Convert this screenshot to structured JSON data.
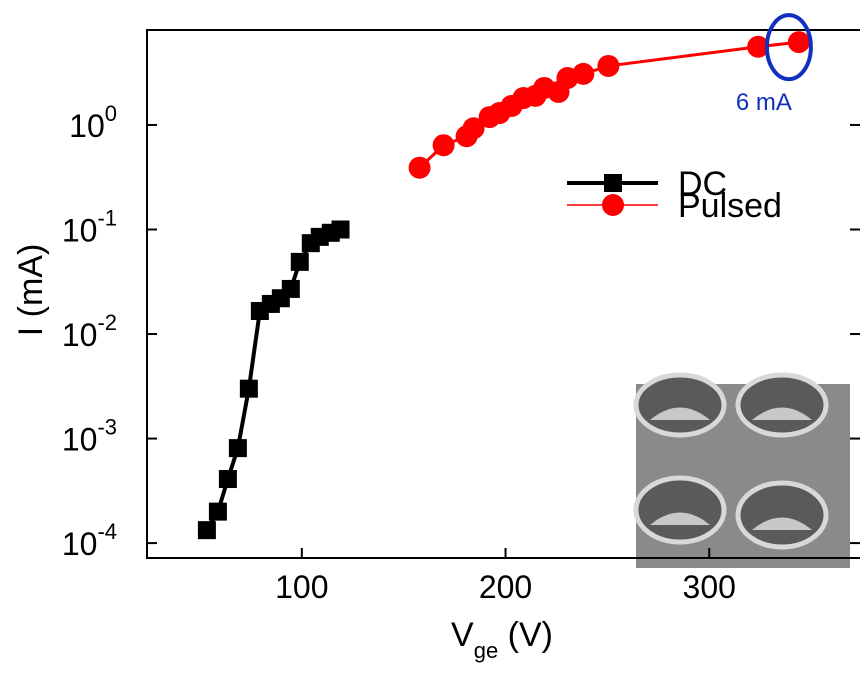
{
  "chart_data": {
    "type": "line",
    "log_y": true,
    "xlabel": {
      "main": "V",
      "sub": "ge",
      "rest": " (V)"
    },
    "ylabel": "I (mA)",
    "xlim": [
      24,
      374
    ],
    "xticks": [
      100,
      200,
      300
    ],
    "ylim": [
      7.2e-05,
      8.1
    ],
    "yticks": [
      {
        "value": 0.0001,
        "label": "10",
        "exp": "-4"
      },
      {
        "value": 0.001,
        "label": "10",
        "exp": "-3"
      },
      {
        "value": 0.01,
        "label": "10",
        "exp": "-2"
      },
      {
        "value": 0.1,
        "label": "10",
        "exp": "-1"
      },
      {
        "value": 1,
        "label": "10",
        "exp": "0"
      }
    ],
    "legend": "upper-right",
    "series": [
      {
        "name": "DC",
        "color": "#000000",
        "marker": "square",
        "x": [
          53.4,
          58.8,
          63.7,
          68.6,
          74,
          79.4,
          84.8,
          89.7,
          94.6,
          99,
          104.4,
          108.8,
          114.2,
          119
        ],
        "values": [
          0.000133,
          0.0002,
          0.00041,
          0.00081,
          0.003,
          0.0166,
          0.0194,
          0.022,
          0.027,
          0.049,
          0.074,
          0.085,
          0.093,
          0.1
        ]
      },
      {
        "name": "Pulsed",
        "color": "#ff0000",
        "marker": "circle",
        "x": [
          157.8,
          169.6,
          180.9,
          184.3,
          192.2,
          197,
          203,
          208.8,
          214.7,
          219,
          226,
          230.4,
          238.2,
          250.5,
          324,
          344
        ],
        "values": [
          0.39,
          0.64,
          0.78,
          0.93,
          1.19,
          1.3,
          1.52,
          1.81,
          1.9,
          2.26,
          2.07,
          2.81,
          3.08,
          3.67,
          5.6,
          6.2
        ]
      }
    ],
    "annotation": {
      "text": "6 mA",
      "color": "#1030c0"
    }
  }
}
